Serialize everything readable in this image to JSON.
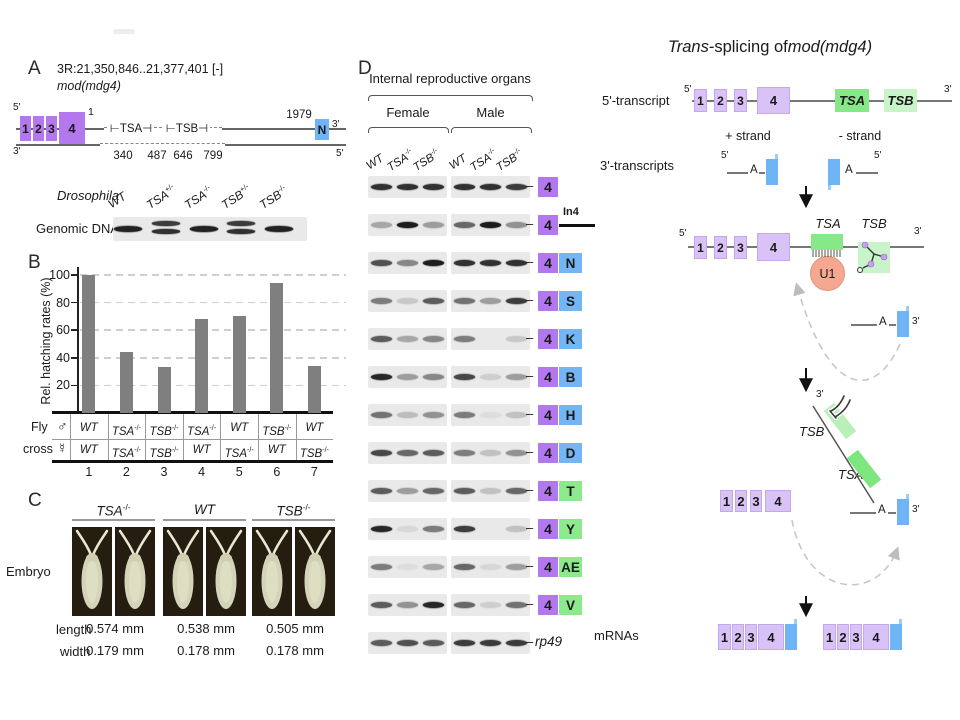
{
  "figure_title": "Trans-splicing of mod(mdg4)",
  "colors": {
    "purple_exon": "#b478ee",
    "lavender_exon": "#d9c2f6",
    "utr_blue": "#6fb4f4",
    "tsa_green": "#86e886",
    "tsb_green_light": "#c9f4c9",
    "u1_fill": "#f5a88f",
    "u1_border": "#df9379",
    "bar_gray": "#7f7f7f",
    "gel_bg": "#e9e9e9",
    "dot_purple": "#c9a2ef",
    "tag_blue": "#74b6f4",
    "tag_green": "#8ce98c"
  },
  "panelA": {
    "label": "A",
    "locus": "3R:21,350,846..21,377,401 [-]",
    "gene": "mod(mdg4)",
    "five": "5'",
    "three": "3'",
    "exons": [
      "1",
      "2",
      "3",
      "4"
    ],
    "exon_start": "1",
    "end_num": "1979",
    "n_box": "N",
    "tsa_bracket": "⊢TSA⊣",
    "tsb_bracket": "⊢TSB⊣",
    "coords": [
      "340",
      "487",
      "646",
      "799"
    ],
    "drosophila_label": "Drosophila",
    "genomic_label": "Genomic DNA",
    "lanes": [
      {
        "b": "WT",
        "s": ""
      },
      {
        "b": "TSA",
        "s": "+/-"
      },
      {
        "b": "TSA",
        "s": "-/-"
      },
      {
        "b": "TSB",
        "s": "+/-"
      },
      {
        "b": "TSB",
        "s": "-/-"
      }
    ],
    "lane_band_count": [
      1,
      2,
      1,
      2,
      1
    ]
  },
  "panelB": {
    "label": "B",
    "ylabel": "Rel. hatching rates (%)",
    "yticks": [
      100,
      80,
      60,
      40,
      20
    ],
    "values": [
      100,
      44,
      33,
      68,
      70,
      94,
      34
    ],
    "fly": "Fly",
    "cross": "cross",
    "male_symbol": "♂",
    "female_symbol": "☿",
    "male_row": [
      {
        "b": "WT",
        "s": ""
      },
      {
        "b": "TSA",
        "s": "-/-"
      },
      {
        "b": "TSB",
        "s": "-/-"
      },
      {
        "b": "TSA",
        "s": "-/-"
      },
      {
        "b": "WT",
        "s": ""
      },
      {
        "b": "TSB",
        "s": "-/-"
      },
      {
        "b": "WT",
        "s": ""
      }
    ],
    "female_row": [
      {
        "b": "WT",
        "s": ""
      },
      {
        "b": "TSA",
        "s": "-/-"
      },
      {
        "b": "TSB",
        "s": "-/-"
      },
      {
        "b": "WT",
        "s": ""
      },
      {
        "b": "TSA",
        "s": "-/-"
      },
      {
        "b": "WT",
        "s": ""
      },
      {
        "b": "TSB",
        "s": "-/-"
      }
    ],
    "numbers": [
      "1",
      "2",
      "3",
      "4",
      "5",
      "6",
      "7"
    ]
  },
  "panelC": {
    "label": "C",
    "embryo_label": "Embryo",
    "groups": [
      {
        "b": "TSA",
        "s": "-/-"
      },
      {
        "b": "WT",
        "s": ""
      },
      {
        "b": "TSB",
        "s": "-/-"
      }
    ],
    "length_label": "length",
    "width_label": "width",
    "lengths": [
      "0.574 mm",
      "0.538 mm",
      "0.505 mm"
    ],
    "widths": [
      "0.179 mm",
      "0.178 mm",
      "0.178 mm"
    ]
  },
  "panelD": {
    "label": "D",
    "header": "Internal reproductive organs",
    "female": "Female",
    "male": "Male",
    "lanes": [
      {
        "b": "WT",
        "s": ""
      },
      {
        "b": "TSA",
        "s": "-/-"
      },
      {
        "b": "TSB",
        "s": "-/-"
      }
    ],
    "rows": [
      {
        "four": "4",
        "tag": null,
        "tag_color": null,
        "in4": false,
        "bands": [
          0.85,
          0.85,
          0.85,
          0.85,
          0.85,
          0.8
        ]
      },
      {
        "four": "4",
        "tag": null,
        "tag_color": null,
        "in4": true,
        "in4_label": "In4",
        "bands": [
          0.3,
          0.95,
          0.35,
          0.6,
          0.95,
          0.4
        ]
      },
      {
        "four": "4",
        "tag": "N",
        "tag_color": "blue",
        "in4": false,
        "bands": [
          0.7,
          0.45,
          0.95,
          0.85,
          0.85,
          0.85
        ]
      },
      {
        "four": "4",
        "tag": "S",
        "tag_color": "blue",
        "in4": false,
        "bands": [
          0.5,
          0.15,
          0.65,
          0.55,
          0.35,
          0.8
        ]
      },
      {
        "four": "4",
        "tag": "K",
        "tag_color": "blue",
        "in4": false,
        "bands": [
          0.65,
          0.3,
          0.45,
          0.5,
          0,
          0.15
        ]
      },
      {
        "four": "4",
        "tag": "B",
        "tag_color": "blue",
        "in4": false,
        "bands": [
          0.9,
          0.35,
          0.45,
          0.75,
          0.12,
          0.35
        ]
      },
      {
        "four": "4",
        "tag": "H",
        "tag_color": "blue",
        "in4": false,
        "bands": [
          0.55,
          0.2,
          0.4,
          0.5,
          0.05,
          0.18
        ]
      },
      {
        "four": "4",
        "tag": "D",
        "tag_color": "blue",
        "in4": false,
        "bands": [
          0.75,
          0.6,
          0.65,
          0.5,
          0.18,
          0.4
        ]
      },
      {
        "four": "4",
        "tag": "T",
        "tag_color": "green",
        "in4": false,
        "bands": [
          0.65,
          0.35,
          0.6,
          0.65,
          0.18,
          0.6
        ]
      },
      {
        "four": "4",
        "tag": "Y",
        "tag_color": "green",
        "in4": false,
        "bands": [
          0.9,
          0.08,
          0.5,
          0.8,
          0.02,
          0.18
        ]
      },
      {
        "four": "4",
        "tag": "AE",
        "tag_color": "green",
        "in4": false,
        "bands": [
          0.5,
          0.05,
          0.3,
          0.6,
          0.08,
          0.35
        ]
      },
      {
        "four": "4",
        "tag": "V",
        "tag_color": "green",
        "in4": false,
        "bands": [
          0.65,
          0.4,
          0.9,
          0.6,
          0.12,
          0.55
        ]
      },
      {
        "four": null,
        "tag": null,
        "tag_color": null,
        "in4": false,
        "rp49": "rp49",
        "bands": [
          0.65,
          0.7,
          0.65,
          0.8,
          0.8,
          0.8
        ]
      }
    ]
  },
  "diagram": {
    "title_italic1": "Trans",
    "title_mid": "-splicing of ",
    "title_italic2": "mod(mdg4)",
    "transcript5_label": "5'-transcript",
    "transcripts3_label": "3'-transcripts",
    "plus_strand": "+ strand",
    "minus_strand": "- strand",
    "five": "5'",
    "three": "3'",
    "a_label": "A",
    "exons": [
      "1",
      "2",
      "3",
      "4"
    ],
    "tsa": "TSA",
    "tsb": "TSB",
    "u1": "U1",
    "mrnas_label": "mRNAs"
  },
  "chart_data": {
    "type": "bar",
    "categories": [
      "1",
      "2",
      "3",
      "4",
      "5",
      "6",
      "7"
    ],
    "values": [
      100,
      44,
      33,
      68,
      70,
      94,
      34
    ],
    "title": "",
    "xlabel": "Fly cross",
    "ylabel": "Rel. hatching rates (%)",
    "ylim": [
      0,
      100
    ],
    "grid": true,
    "legend": false,
    "cross_male": [
      "WT",
      "TSA-/-",
      "TSB-/-",
      "TSA-/-",
      "WT",
      "TSB-/-",
      "WT"
    ],
    "cross_female": [
      "WT",
      "TSA-/-",
      "TSB-/-",
      "WT",
      "TSA-/-",
      "WT",
      "TSB-/-"
    ]
  }
}
